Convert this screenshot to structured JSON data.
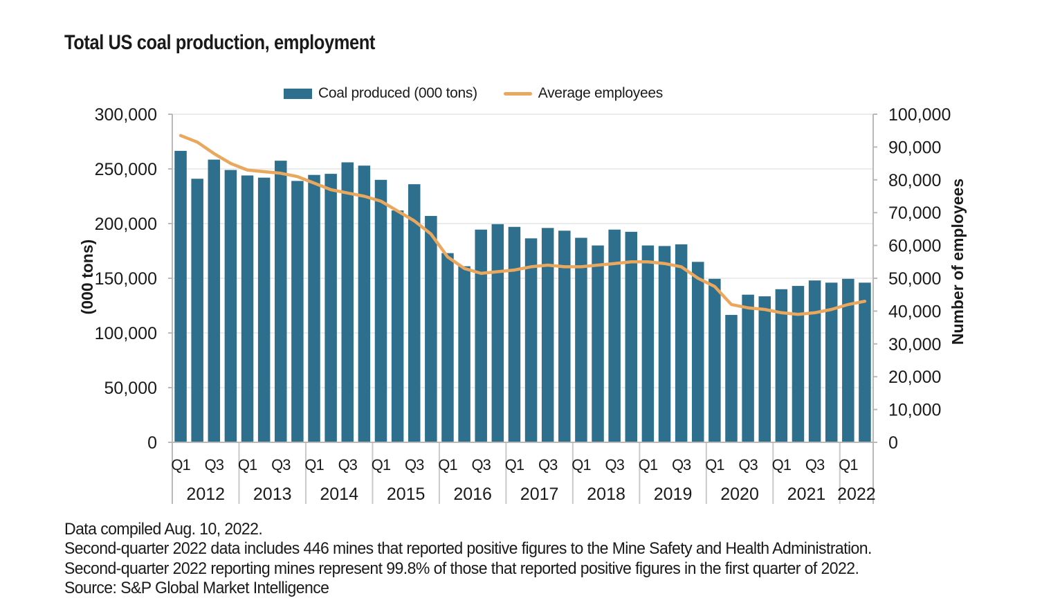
{
  "title": "Total US coal production, employment",
  "legend": [
    {
      "label": "Coal produced (000 tons)",
      "type": "bar"
    },
    {
      "label": "Average employees",
      "type": "line"
    }
  ],
  "footnotes": [
    "Data compiled Aug. 10, 2022.",
    "Second-quarter 2022 data includes 446 mines that reported positive figures to the Mine Safety and Health Administration.",
    "Second-quarter 2022 reporting mines represent 99.8% of those that reported positive figures in the first quarter of 2022.",
    "Source: S&P Global Market Intelligence"
  ],
  "colors": {
    "bar": "#2f6f8e",
    "line": "#eaa75e",
    "grid": "#ececec",
    "axis": "#b9b9b9",
    "separator": "#c9c9c9",
    "text": "#1a1a1a"
  },
  "chart_data": {
    "type": "bar+line",
    "categories": [
      "2012 Q1",
      "2012 Q2",
      "2012 Q3",
      "2012 Q4",
      "2013 Q1",
      "2013 Q2",
      "2013 Q3",
      "2013 Q4",
      "2014 Q1",
      "2014 Q2",
      "2014 Q3",
      "2014 Q4",
      "2015 Q1",
      "2015 Q2",
      "2015 Q3",
      "2015 Q4",
      "2016 Q1",
      "2016 Q2",
      "2016 Q3",
      "2016 Q4",
      "2017 Q1",
      "2017 Q2",
      "2017 Q3",
      "2017 Q4",
      "2018 Q1",
      "2018 Q2",
      "2018 Q3",
      "2018 Q4",
      "2019 Q1",
      "2019 Q2",
      "2019 Q3",
      "2019 Q4",
      "2020 Q1",
      "2020 Q2",
      "2020 Q3",
      "2020 Q4",
      "2021 Q1",
      "2021 Q2",
      "2021 Q3",
      "2021 Q4",
      "2022 Q1",
      "2022 Q2"
    ],
    "series": [
      {
        "name": "Coal produced (000 tons)",
        "type": "bar",
        "axis": "left",
        "color": "#2f6f8e",
        "values": [
          266500,
          241000,
          258500,
          249000,
          244000,
          242000,
          257500,
          239000,
          244500,
          245500,
          256000,
          253000,
          240000,
          212000,
          236000,
          207000,
          173000,
          161000,
          194500,
          199500,
          197000,
          186500,
          196000,
          193500,
          187000,
          180000,
          194500,
          192500,
          180000,
          179500,
          181000,
          165000,
          149500,
          116500,
          135000,
          133500,
          140000,
          143000,
          148000,
          146000,
          149500,
          146000
        ]
      },
      {
        "name": "Average employees",
        "type": "line",
        "axis": "right",
        "color": "#eaa75e",
        "values": [
          93500,
          91500,
          88000,
          85000,
          83000,
          82500,
          82000,
          81000,
          79000,
          77000,
          76000,
          75000,
          73500,
          70500,
          67500,
          63500,
          56500,
          53000,
          51500,
          52000,
          52500,
          53500,
          54000,
          53500,
          53500,
          54000,
          54500,
          55000,
          55000,
          54500,
          53500,
          50000,
          47500,
          42000,
          41000,
          40500,
          39500,
          39000,
          39500,
          40500,
          42000,
          43000
        ]
      }
    ],
    "left_axis": {
      "title": "(000 tons)",
      "min": 0,
      "max": 300000,
      "tick_step": 50000
    },
    "right_axis": {
      "title": "Number of employees",
      "min": 0,
      "max": 100000,
      "tick_step": 10000
    },
    "x_axis": {
      "years": [
        {
          "label": "2012",
          "quarters": 4
        },
        {
          "label": "2013",
          "quarters": 4
        },
        {
          "label": "2014",
          "quarters": 4
        },
        {
          "label": "2015",
          "quarters": 4
        },
        {
          "label": "2016",
          "quarters": 4
        },
        {
          "label": "2017",
          "quarters": 4
        },
        {
          "label": "2018",
          "quarters": 4
        },
        {
          "label": "2019",
          "quarters": 4
        },
        {
          "label": "2020",
          "quarters": 4
        },
        {
          "label": "2021",
          "quarters": 4
        },
        {
          "label": "2022",
          "quarters": 2
        }
      ],
      "quarter_tick_labels": [
        "Q1",
        "Q3"
      ]
    },
    "grid": "horizontal",
    "legend_position": "top"
  }
}
